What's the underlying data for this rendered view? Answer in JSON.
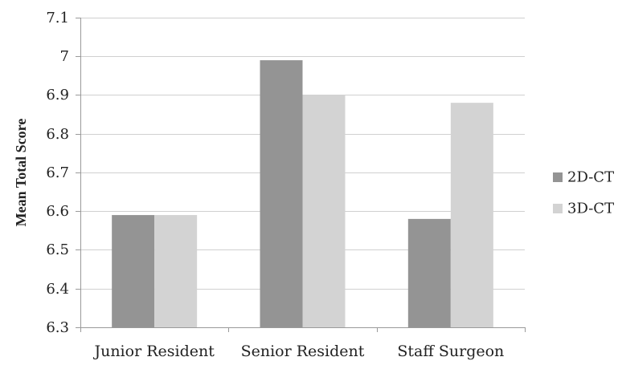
{
  "chart_data": {
    "type": "bar",
    "title": "",
    "xlabel": "",
    "ylabel": "Mean Total Score",
    "categories": [
      "Junior Resident",
      "Senior Resident",
      "Staff Surgeon"
    ],
    "series": [
      {
        "name": "2D-CT",
        "color": "#949494",
        "values": [
          6.59,
          6.99,
          6.58
        ]
      },
      {
        "name": "3D-CT",
        "color": "#d3d3d3",
        "values": [
          6.59,
          6.9,
          6.88
        ]
      }
    ],
    "ylim": [
      6.3,
      7.1
    ],
    "yticks": [
      "6.3",
      "6.4",
      "6.5",
      "6.6",
      "6.7",
      "6.8",
      "6.9",
      "7",
      "7.1"
    ],
    "grid": true,
    "legend_position": "right"
  }
}
